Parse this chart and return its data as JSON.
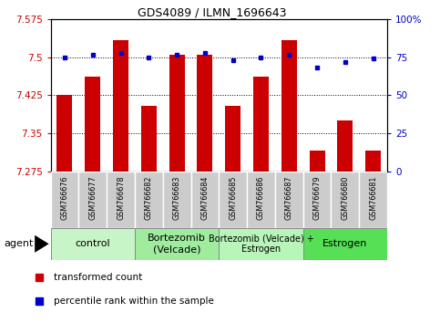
{
  "title": "GDS4089 / ILMN_1696643",
  "samples": [
    "GSM766676",
    "GSM766677",
    "GSM766678",
    "GSM766682",
    "GSM766683",
    "GSM766684",
    "GSM766685",
    "GSM766686",
    "GSM766687",
    "GSM766679",
    "GSM766680",
    "GSM766681"
  ],
  "red_values": [
    7.425,
    7.462,
    7.534,
    7.405,
    7.505,
    7.505,
    7.405,
    7.462,
    7.534,
    7.316,
    7.375,
    7.316
  ],
  "blue_values": [
    75,
    77,
    78,
    75,
    77,
    78,
    73,
    75,
    77,
    68,
    72,
    74
  ],
  "ymin": 7.275,
  "ymax": 7.575,
  "yticks": [
    7.275,
    7.35,
    7.425,
    7.5,
    7.575
  ],
  "y2min": 0,
  "y2max": 100,
  "y2ticks": [
    0,
    25,
    50,
    75,
    100
  ],
  "groups": [
    {
      "label": "control",
      "start": 0,
      "end": 3,
      "color": "#c8f5c8",
      "fontsize": 8
    },
    {
      "label": "Bortezomib\n(Velcade)",
      "start": 3,
      "end": 6,
      "color": "#9fec9f",
      "fontsize": 8
    },
    {
      "label": "Bortezomib (Velcade) +\nEstrogen",
      "start": 6,
      "end": 9,
      "color": "#b8f5b8",
      "fontsize": 7
    },
    {
      "label": "Estrogen",
      "start": 9,
      "end": 12,
      "color": "#55e055",
      "fontsize": 8
    }
  ],
  "bar_color": "#cc0000",
  "dot_color": "#0000cc",
  "bar_width": 0.55,
  "agent_label": "agent",
  "sample_box_color": "#cccccc",
  "group_border_color": "#888888"
}
